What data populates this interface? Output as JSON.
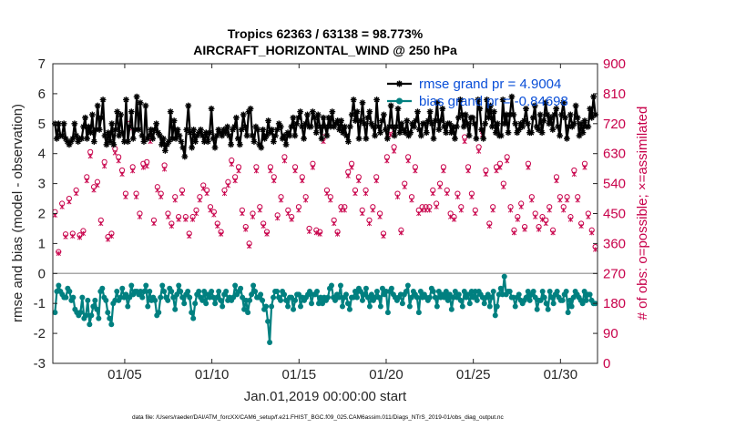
{
  "chart_data": {
    "type": "line",
    "title": "Tropics 62363 / 63138 = 98.773%",
    "subtitle": "AIRCRAFT_HORIZONTAL_WIND @ 250 hPa",
    "xlabel": "Jan.01,2019 00:00:00 start",
    "ylabel": "rmse and bias (model - observation)",
    "ylabel_right": "# of obs: o=possible; ×=assimilated",
    "footnote": "data file: /Users/raeder/DAI/ATM_forcXX/CAM6_setup/f.e21.FHIST_BGC.f09_025.CAM6assim.011/Diags_NTrS_2019-01/obs_diag_output.nc",
    "xlim": [
      0.875,
      32.125
    ],
    "ylim": [
      -3,
      7
    ],
    "ylim_right": [
      0,
      900
    ],
    "xticks": [
      5,
      10,
      15,
      20,
      25,
      30
    ],
    "xtick_labels": [
      "01/05",
      "01/10",
      "01/15",
      "01/20",
      "01/25",
      "01/30"
    ],
    "yticks": [
      -3,
      -2,
      -1,
      0,
      1,
      2,
      3,
      4,
      5,
      6,
      7
    ],
    "yticks_right": [
      0,
      90,
      180,
      270,
      360,
      450,
      540,
      630,
      720,
      810,
      900
    ],
    "legend": {
      "position": "top-right"
    },
    "series": [
      {
        "name": "rmse grand pr = 4.9004",
        "axis": "left",
        "color": "#000000",
        "marker": "asterisk",
        "values": [
          5.0,
          4.5,
          5.0,
          4.6,
          4.6,
          5.0,
          4.5,
          4.4,
          4.3,
          4.4,
          4.5,
          5.0,
          4.6,
          4.4,
          4.5,
          4.5,
          4.9,
          5.2,
          4.5,
          4.9,
          4.7,
          5.3,
          4.4,
          4.8,
          5.6,
          4.8,
          5.2,
          5.8,
          4.6,
          4.3,
          4.7,
          4.4,
          5.0,
          4.3,
          4.8,
          5.4,
          4.6,
          5.3,
          4.7,
          4.4,
          5.8,
          4.4,
          4.9,
          5.4,
          4.5,
          4.8,
          5.9,
          4.8,
          5.7,
          4.6,
          4.4,
          5.6,
          4.5,
          4.6,
          4.8,
          4.5,
          4.8,
          5.0,
          4.7,
          4.6,
          4.3,
          4.5,
          4.1,
          4.3,
          4.4,
          5.4,
          4.5,
          5.1,
          4.5,
          4.8,
          4.6,
          4.4,
          4.2,
          3.9,
          4.8,
          5.6,
          4.7,
          4.2,
          4.8,
          4.4,
          4.6,
          4.7,
          4.8,
          4.6,
          4.4,
          4.7,
          4.4,
          4.7,
          5.5,
          4.5,
          4.2,
          4.6,
          4.8,
          4.7,
          4.6,
          4.8,
          4.7,
          4.9,
          4.6,
          4.3,
          4.8,
          4.9,
          5.2,
          4.5,
          4.3,
          4.8,
          5.3,
          4.9,
          4.6,
          5.4,
          5.5,
          4.6,
          4.4,
          4.9,
          4.8,
          4.3,
          4.2,
          4.8,
          4.5,
          4.6,
          5.1,
          4.7,
          4.8,
          4.4,
          4.6,
          4.8,
          5.0,
          4.9,
          4.5,
          4.6,
          4.3,
          4.7,
          4.6,
          4.9,
          5.2,
          4.6,
          5.0,
          5.2,
          5.4,
          4.9,
          4.5,
          5.0,
          5.3,
          4.9,
          4.9,
          5.4,
          5.2,
          4.7,
          5.3,
          4.9,
          4.5,
          5.2,
          4.9,
          4.6,
          5.2,
          4.9,
          5.4,
          4.9,
          5.0,
          5.1,
          4.8,
          5.1,
          4.7,
          4.9,
          4.6,
          4.4,
          4.9,
          5.3,
          5.8,
          5.1,
          5.4,
          4.5,
          5.1,
          5.7,
          5.0,
          4.5,
          5.2,
          5.4,
          5.0,
          4.9,
          4.6,
          5.8,
          4.9,
          4.7,
          5.1,
          5.3,
          4.8,
          4.5,
          4.9,
          5.6,
          4.9,
          4.6,
          4.9,
          5.5,
          4.7,
          5.0,
          4.8,
          4.7,
          5.1,
          4.6,
          4.7,
          5.0,
          4.9,
          5.1,
          5.4,
          4.8,
          4.6,
          5.0,
          5.0,
          4.7,
          5.1,
          5.4,
          5.0,
          4.5,
          5.1,
          5.7,
          4.8,
          5.1,
          5.5,
          4.9,
          4.7,
          5.0,
          5.0,
          4.7,
          4.9,
          4.5,
          4.9,
          5.2,
          5.8,
          5.3,
          4.9,
          5.3,
          5.0,
          4.6,
          5.2,
          5.2,
          5.0,
          4.5,
          5.8,
          5.5,
          4.8,
          4.5,
          5.0,
          5.8,
          5.2,
          5.6,
          4.9,
          5.4,
          4.7,
          5.0,
          4.6,
          4.6,
          5.8,
          5.0,
          5.3,
          4.7,
          5.3,
          5.9,
          5.3,
          5.0,
          4.7,
          4.8,
          5.0,
          4.9,
          5.1,
          5.5,
          5.0,
          4.7,
          4.7,
          5.2,
          5.6,
          4.9,
          4.8,
          5.3,
          4.7,
          5.1,
          5.7,
          5.3,
          5.0,
          5.2,
          4.8,
          5.3,
          5.5,
          4.9,
          4.6,
          5.3,
          5.7,
          5.2,
          4.5,
          4.9,
          5.3,
          4.9,
          5.0,
          5.6,
          5.2,
          4.6,
          5.0,
          4.7,
          5.1,
          4.9,
          4.9,
          5.5,
          5.2,
          5.9,
          5.3
        ]
      },
      {
        "name": "bias grand pr = -0.84698",
        "axis": "left",
        "color": "#008080",
        "marker": "dot",
        "values": [
          -1.3,
          -0.6,
          -0.4,
          -0.6,
          -0.7,
          -0.8,
          -0.8,
          -0.5,
          -0.6,
          -0.9,
          -0.8,
          -1.2,
          -1.3,
          -1.4,
          -1.3,
          -0.8,
          -1.5,
          -1.4,
          -0.9,
          -1.7,
          -1.4,
          -1.1,
          -0.9,
          -1.2,
          -1.5,
          -0.6,
          -0.5,
          -0.8,
          -0.9,
          -1.3,
          -1.5,
          -1.7,
          -1.0,
          -0.9,
          -0.6,
          -0.9,
          -0.8,
          -0.5,
          -0.8,
          -0.7,
          -1.1,
          -0.8,
          -0.4,
          -0.7,
          -0.6,
          -0.6,
          -0.7,
          -0.6,
          -0.8,
          -0.6,
          -0.4,
          -1.1,
          -0.6,
          -0.9,
          -0.8,
          -0.9,
          -1.4,
          -1.3,
          -0.8,
          -0.4,
          -0.6,
          -0.8,
          -0.9,
          -0.5,
          -0.6,
          -0.8,
          -1.2,
          -0.7,
          -0.4,
          -0.6,
          -0.8,
          -1.0,
          -0.7,
          -0.6,
          -0.8,
          -1.3,
          -1.5,
          -1.0,
          -0.7,
          -0.6,
          -0.8,
          -0.9,
          -0.6,
          -1.0,
          -0.7,
          -0.8,
          -0.6,
          -0.8,
          -1.0,
          -0.8,
          -0.6,
          -0.9,
          -1.1,
          -0.7,
          -0.6,
          -0.9,
          -0.8,
          -0.9,
          -0.8,
          -0.4,
          -0.7,
          -0.6,
          -0.5,
          -0.8,
          -1.2,
          -0.9,
          -1.3,
          -0.9,
          -0.7,
          -0.4,
          -0.6,
          -0.8,
          -0.8,
          -0.7,
          -0.9,
          -1.2,
          -1.1,
          -1.6,
          -2.3,
          -1.1,
          -0.8,
          -0.6,
          -0.6,
          -0.8,
          -0.9,
          -0.6,
          -0.7,
          -0.9,
          -1.1,
          -0.8,
          -0.8,
          -1.2,
          -0.9,
          -0.7,
          -0.7,
          -1.1,
          -0.8,
          -0.9,
          -0.8,
          -0.7,
          -0.6,
          -1.0,
          -0.7,
          -0.7,
          -0.6,
          -1.0,
          -0.8,
          -1.0,
          -0.8,
          -0.9,
          -0.8,
          -0.5,
          -0.4,
          -0.8,
          -0.9,
          -0.7,
          -0.8,
          -0.4,
          -1.1,
          -0.8,
          -0.7,
          -1.0,
          -1.2,
          -0.8,
          -0.8,
          -0.6,
          -0.8,
          -0.5,
          -0.6,
          -0.9,
          -0.7,
          -0.5,
          -0.8,
          -1.1,
          -0.7,
          -0.9,
          -0.8,
          -0.6,
          -0.8,
          -1.1,
          -0.5,
          -0.7,
          -0.6,
          -1.3,
          -0.6,
          -0.5,
          -0.7,
          -0.8,
          -0.9,
          -0.8,
          -0.7,
          -1.0,
          -0.7,
          -0.6,
          -0.4,
          -1.1,
          -0.8,
          -0.6,
          -0.7,
          -0.8,
          -1.3,
          -0.6,
          -0.8,
          -0.7,
          -0.8,
          -0.9,
          -0.8,
          -0.5,
          -0.6,
          -0.8,
          -1.1,
          -0.6,
          -0.8,
          -0.7,
          -0.8,
          -0.6,
          -0.9,
          -0.7,
          -1.2,
          -0.8,
          -0.6,
          -0.8,
          -0.7,
          -0.9,
          -1.1,
          -0.6,
          -0.8,
          -0.7,
          -1.0,
          -0.6,
          -0.8,
          -0.6,
          -0.9,
          -0.6,
          -0.7,
          -0.8,
          -1.0,
          -0.8,
          -0.7,
          -1.1,
          -0.8,
          -0.6,
          -1.4,
          -1.1,
          -0.7,
          -0.5,
          -0.7,
          -0.1,
          -0.7,
          -0.6,
          -0.6,
          -0.8,
          -0.8,
          -1.1,
          -0.8,
          -0.7,
          -0.9,
          -1.0,
          -0.9,
          -0.8,
          -0.6,
          -0.9,
          -0.7,
          -0.6,
          -0.8,
          -1.2,
          -0.9,
          -0.9,
          -0.6,
          -0.8,
          -1.0,
          -1.2,
          -0.6,
          -0.8,
          -1.0,
          -0.7,
          -0.6,
          -0.8,
          -0.9,
          -0.9,
          -0.7,
          -0.6,
          -1.3,
          -0.9,
          -1.1,
          -0.8,
          -0.6,
          -0.7,
          -0.8,
          -0.9,
          -1.0,
          -0.6,
          -0.9,
          -0.7,
          -0.7,
          -0.9,
          -1.0,
          -1.0
        ]
      },
      {
        "name": "obs possible",
        "axis": "right",
        "color": "#c8004a",
        "marker": "circle",
        "values": [
          455,
          335,
          480,
          388,
          495,
          390,
          520,
          385,
          398,
          560,
          635,
          530,
          545,
          430,
          605,
          380,
          390,
          645,
          620,
          580,
          510,
          720,
          590,
          510,
          450,
          600,
          605,
          680,
          430,
          530,
          510,
          595,
          450,
          420,
          500,
          440,
          520,
          440,
          390,
          440,
          460,
          500,
          535,
          520,
          470,
          455,
          420,
          395,
          520,
          545,
          610,
          560,
          590,
          460,
          410,
          360,
          450,
          590,
          470,
          420,
          395,
          590,
          560,
          445,
          500,
          620,
          460,
          440,
          590,
          470,
          560,
          500,
          405,
          600,
          400,
          395,
          680,
          520,
          500,
          430,
          395,
          470,
          470,
          575,
          600,
          520,
          560,
          460,
          520,
          430,
          470,
          560,
          450,
          390,
          620,
          700,
          650,
          510,
          400,
          540,
          620,
          500,
          590,
          460,
          470,
          470,
          470,
          520,
          480,
          540,
          590,
          520,
          450,
          440,
          510,
          470,
          680,
          590,
          510,
          460,
          650,
          700,
          580,
          420,
          470,
          590,
          600,
          540,
          620,
          470,
          400,
          440,
          480,
          410,
          600,
          500,
          450,
          410,
          440,
          430,
          470,
          400,
          560,
          500,
          470,
          500,
          440,
          580,
          500,
          420,
          600,
          450,
          400,
          350
        ]
      },
      {
        "name": "obs assimilated",
        "axis": "right",
        "color": "#c8004a",
        "marker": "x",
        "values": [
          445,
          330,
          470,
          380,
          485,
          382,
          510,
          378,
          390,
          548,
          622,
          520,
          535,
          420,
          592,
          372,
          382,
          632,
          608,
          568,
          500,
          706,
          578,
          500,
          440,
          588,
          592,
          666,
          420,
          520,
          500,
          583,
          440,
          412,
          490,
          432,
          510,
          432,
          382,
          432,
          450,
          490,
          525,
          510,
          460,
          446,
          412,
          388,
          510,
          534,
          598,
          548,
          578,
          450,
          402,
          352,
          440,
          578,
          460,
          412,
          388,
          578,
          548,
          436,
          490,
          608,
          450,
          432,
          578,
          460,
          548,
          490,
          396,
          588,
          392,
          388,
          666,
          510,
          490,
          420,
          388,
          460,
          460,
          563,
          588,
          510,
          548,
          450,
          510,
          420,
          460,
          548,
          440,
          382,
          608,
          686,
          637,
          500,
          392,
          530,
          608,
          490,
          578,
          450,
          460,
          460,
          460,
          510,
          470,
          530,
          578,
          510,
          440,
          432,
          500,
          460,
          666,
          578,
          500,
          450,
          637,
          686,
          568,
          412,
          460,
          578,
          588,
          530,
          608,
          460,
          392,
          432,
          470,
          402,
          588,
          490,
          440,
          402,
          432,
          420,
          460,
          392,
          548,
          490,
          460,
          490,
          432,
          568,
          490,
          412,
          588,
          440,
          392,
          342
        ]
      }
    ]
  }
}
